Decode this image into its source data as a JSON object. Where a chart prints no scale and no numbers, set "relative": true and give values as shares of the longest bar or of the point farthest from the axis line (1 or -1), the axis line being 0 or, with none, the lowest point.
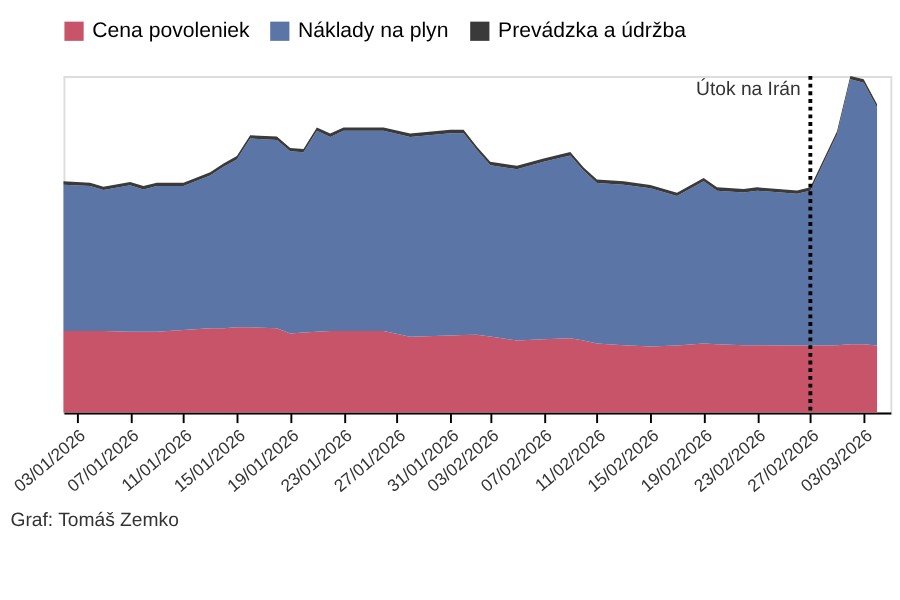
{
  "chart_data": {
    "type": "area",
    "stacked": true,
    "relative": true,
    "legend": "top left",
    "x": [
      "2026-01-02",
      "2026-01-04",
      "2026-01-05",
      "2026-01-07",
      "2026-01-08",
      "2026-01-09",
      "2026-01-11",
      "2026-01-13",
      "2026-01-14",
      "2026-01-15",
      "2026-01-16",
      "2026-01-18",
      "2026-01-19",
      "2026-01-20",
      "2026-01-21",
      "2026-01-22",
      "2026-01-23",
      "2026-01-26",
      "2026-01-28",
      "2026-01-31",
      "2026-02-01",
      "2026-02-02",
      "2026-02-03",
      "2026-02-05",
      "2026-02-07",
      "2026-02-09",
      "2026-02-10",
      "2026-02-11",
      "2026-02-13",
      "2026-02-15",
      "2026-02-17",
      "2026-02-19",
      "2026-02-20",
      "2026-02-22",
      "2026-02-23",
      "2026-02-26",
      "2026-02-27",
      "2026-03-01",
      "2026-03-02",
      "2026-03-03",
      "2026-03-04"
    ],
    "xlim": [
      "2026-01-02",
      "2026-03-05"
    ],
    "xticks": [
      {
        "value": "2026-01-03",
        "label": "03/01/2026"
      },
      {
        "value": "2026-01-07",
        "label": "07/01/2026"
      },
      {
        "value": "2026-01-11",
        "label": "11/01/2026"
      },
      {
        "value": "2026-01-15",
        "label": "15/01/2026"
      },
      {
        "value": "2026-01-19",
        "label": "19/01/2026"
      },
      {
        "value": "2026-01-23",
        "label": "23/01/2026"
      },
      {
        "value": "2026-01-27",
        "label": "27/01/2026"
      },
      {
        "value": "2026-01-31",
        "label": "31/01/2026"
      },
      {
        "value": "2026-02-03",
        "label": "03/02/2026"
      },
      {
        "value": "2026-02-07",
        "label": "07/02/2026"
      },
      {
        "value": "2026-02-11",
        "label": "11/02/2026"
      },
      {
        "value": "2026-02-15",
        "label": "15/02/2026"
      },
      {
        "value": "2026-02-19",
        "label": "19/02/2026"
      },
      {
        "value": "2026-02-23",
        "label": "23/02/2026"
      },
      {
        "value": "2026-02-27",
        "label": "27/02/2026"
      },
      {
        "value": "2026-03-03",
        "label": "03/03/2026"
      }
    ],
    "series": [
      {
        "name": "Cena povoleniek",
        "color": "#c8546a",
        "values": [
          0.242,
          0.242,
          0.242,
          0.24,
          0.24,
          0.24,
          0.245,
          0.25,
          0.25,
          0.253,
          0.253,
          0.25,
          0.235,
          0.238,
          0.24,
          0.242,
          0.242,
          0.242,
          0.225,
          0.229,
          0.23,
          0.231,
          0.226,
          0.214,
          0.218,
          0.221,
          0.214,
          0.205,
          0.2,
          0.196,
          0.199,
          0.205,
          0.203,
          0.2,
          0.2,
          0.199,
          0.199,
          0.2,
          0.203,
          0.203,
          0.199
        ]
      },
      {
        "name": "Náklady na plyn",
        "color": "#5b75a6",
        "values": [
          0.435,
          0.431,
          0.419,
          0.435,
          0.423,
          0.433,
          0.428,
          0.454,
          0.48,
          0.499,
          0.561,
          0.56,
          0.541,
          0.535,
          0.597,
          0.577,
          0.595,
          0.595,
          0.594,
          0.601,
          0.6,
          0.549,
          0.509,
          0.509,
          0.527,
          0.543,
          0.504,
          0.477,
          0.477,
          0.47,
          0.444,
          0.482,
          0.456,
          0.454,
          0.459,
          0.451,
          0.46,
          0.626,
          0.787,
          0.777,
          0.707
        ]
      },
      {
        "name": "Prevádzka a údržba",
        "color": "#3a3a3a",
        "values": [
          0.01,
          0.01,
          0.01,
          0.01,
          0.01,
          0.01,
          0.01,
          0.01,
          0.01,
          0.01,
          0.01,
          0.01,
          0.01,
          0.01,
          0.01,
          0.01,
          0.01,
          0.01,
          0.01,
          0.01,
          0.01,
          0.01,
          0.01,
          0.01,
          0.01,
          0.01,
          0.01,
          0.01,
          0.01,
          0.01,
          0.01,
          0.01,
          0.01,
          0.01,
          0.01,
          0.01,
          0.01,
          0.01,
          0.01,
          0.01,
          0.01
        ]
      }
    ],
    "ref_lines": [
      {
        "axis": "x",
        "value": "2026-02-27",
        "label": "Útok na Irán",
        "color": "#000000",
        "line_style": "dotted"
      }
    ],
    "annotations": [
      "Graf: Tomáš Zemko"
    ]
  }
}
